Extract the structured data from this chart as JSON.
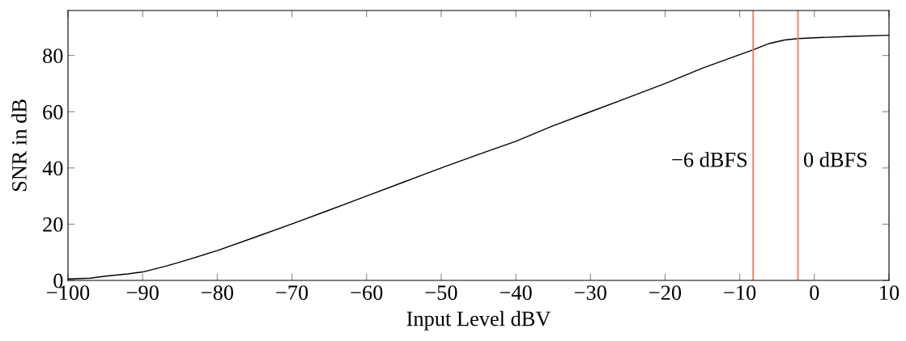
{
  "chart_data": {
    "type": "line",
    "xlabel": "Input Level dBV",
    "ylabel": "SNR in dB",
    "x": [
      -100,
      -97,
      -95,
      -92,
      -90,
      -87,
      -85,
      -80,
      -75,
      -70,
      -65,
      -60,
      -55,
      -50,
      -45,
      -40,
      -35,
      -30,
      -25,
      -20,
      -15,
      -10,
      -8.2,
      -6,
      -4,
      -2.2,
      0,
      5,
      10
    ],
    "series": [
      {
        "color": "#000000",
        "values": [
          0.5,
          0.8,
          1.5,
          2.3,
          3,
          5,
          6.5,
          10.6,
          15.3,
          20.1,
          25,
          30,
          35,
          40,
          44.8,
          49.5,
          55,
          60,
          65,
          70,
          75.5,
          80.3,
          82,
          84.3,
          85.5,
          86,
          86.3,
          86.8,
          87.2
        ]
      }
    ],
    "xlim": [
      -100,
      10
    ],
    "ylim": [
      0,
      96
    ],
    "xticks": [
      {
        "value": -100,
        "label": "−100"
      },
      {
        "value": -90,
        "label": "−90"
      },
      {
        "value": -80,
        "label": "−80"
      },
      {
        "value": -70,
        "label": "−70"
      },
      {
        "value": -60,
        "label": "−60"
      },
      {
        "value": -50,
        "label": "−50"
      },
      {
        "value": -40,
        "label": "−40"
      },
      {
        "value": -30,
        "label": "−30"
      },
      {
        "value": -20,
        "label": "−20"
      },
      {
        "value": -10,
        "label": "−10"
      },
      0,
      10
    ],
    "yticks": [
      0,
      20,
      40,
      60,
      80
    ],
    "ref_lines": [
      {
        "axis": "x",
        "value": -8.2,
        "label": "−6 dBFS",
        "color": "#f4785a"
      },
      {
        "axis": "x",
        "value": -2.2,
        "label": "0 dBFS",
        "color": "#f4785a"
      }
    ],
    "grid": false,
    "legend": false,
    "marker": "none",
    "line_style": "solid"
  }
}
